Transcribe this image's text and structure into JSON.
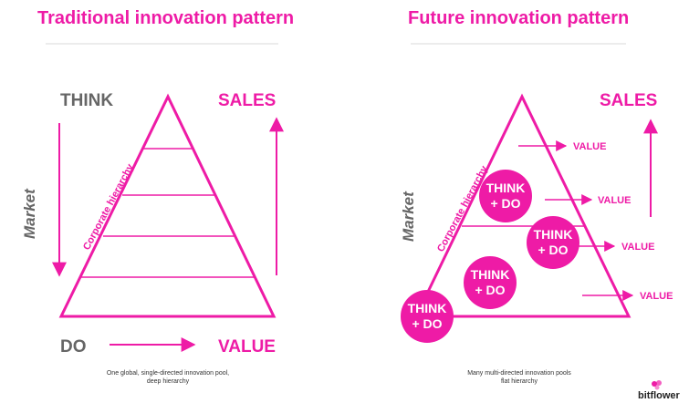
{
  "colors": {
    "accent": "#ee1ba6",
    "gray": "#666666",
    "rule": "#d9d9d9"
  },
  "left": {
    "title": "Traditional innovation pattern",
    "think": "THINK",
    "sales": "SALES",
    "market": "Market",
    "hierarchy": "Corporate hierarchy",
    "do": "DO",
    "value": "VALUE",
    "caption_line1": "One global, single-directed innovation pool,",
    "caption_line2": "deep hierarchy"
  },
  "right": {
    "title": "Future innovation pattern",
    "sales": "SALES",
    "market": "Market",
    "hierarchy": "Corporate hierarchy",
    "value_labels": [
      "VALUE",
      "VALUE",
      "VALUE",
      "VALUE"
    ],
    "bubbles": [
      {
        "line1": "THINK",
        "line2": "+ DO"
      },
      {
        "line1": "THINK",
        "line2": "+ DO"
      },
      {
        "line1": "THINK",
        "line2": "+ DO"
      },
      {
        "line1": "THINK",
        "line2": "+ DO"
      }
    ],
    "caption_line1": "Many multi-directed innovation pools",
    "caption_line2": "flat hierarchy"
  },
  "brand": {
    "name": "bitflower",
    "icon": "flower-logo-icon"
  }
}
